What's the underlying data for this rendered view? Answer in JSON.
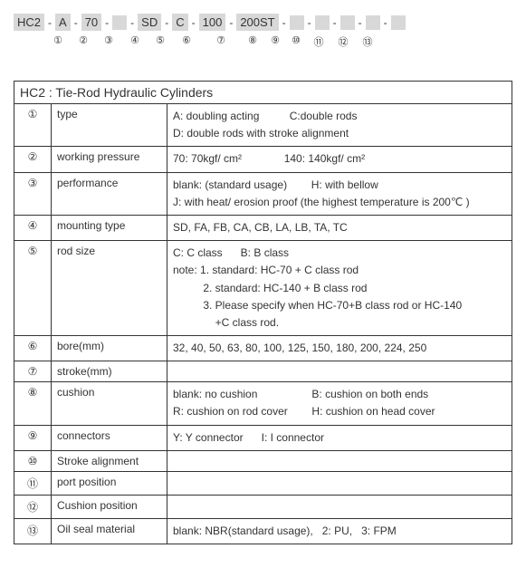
{
  "code_parts": [
    "HC2",
    "A",
    "70",
    "",
    "SD",
    "C",
    "100",
    "200ST",
    "",
    "",
    "",
    "",
    ""
  ],
  "markers": [
    "①",
    "②",
    "③",
    "④",
    "⑤",
    "⑥",
    "⑦",
    "⑧",
    "⑨",
    "⑩",
    "⑪",
    "⑫",
    "⑬"
  ],
  "marker_widths": [
    30,
    24,
    26,
    24,
    28,
    22,
    30,
    40,
    24,
    20,
    20,
    24,
    24,
    24
  ],
  "title": "HC2 : Tie-Rod Hydraulic Cylinders",
  "rows": [
    {
      "n": "①",
      "label": "type",
      "val": "A: doubling acting          C:double rods\nD: double rods with stroke alignment"
    },
    {
      "n": "②",
      "label": "working pressure",
      "val": "70: 70kgf/ cm²              140: 140kgf/ cm²"
    },
    {
      "n": "③",
      "label": "performance",
      "val": "blank: (standard usage)        H: with bellow\nJ: with heat/ erosion proof (the highest temperature is 200℃ )"
    },
    {
      "n": "④",
      "label": "mounting type",
      "val": "SD, FA, FB, CA, CB, LA, LB, TA, TC"
    },
    {
      "n": "⑤",
      "label": "rod size",
      "val": "C: C class      B: B class\nnote: 1. standard: HC-70 + C class rod\n          2. standard: HC-140 + B class rod\n          3. Please specify when HC-70+B class rod or HC-140\n              +C class rod."
    },
    {
      "n": "⑥",
      "label": "bore(mm)",
      "val": "32, 40, 50, 63, 80, 100, 125, 150, 180, 200, 224, 250"
    },
    {
      "n": "⑦",
      "label": "stroke(mm)",
      "val": ""
    },
    {
      "n": "⑧",
      "label": "cushion",
      "val": "blank: no cushion                  B: cushion on both ends\nR: cushion on rod cover        H: cushion on head cover"
    },
    {
      "n": "⑨",
      "label": "connectors",
      "val": "Y: Y connector      I: I connector"
    },
    {
      "n": "⑩",
      "label": "Stroke alignment",
      "val": ""
    },
    {
      "n": "⑪",
      "label": "port position",
      "val": ""
    },
    {
      "n": "⑫",
      "label": "Cushion position",
      "val": ""
    },
    {
      "n": "⑬",
      "label": "Oil seal material",
      "val": "blank: NBR(standard usage),   2: PU,   3: FPM"
    }
  ]
}
